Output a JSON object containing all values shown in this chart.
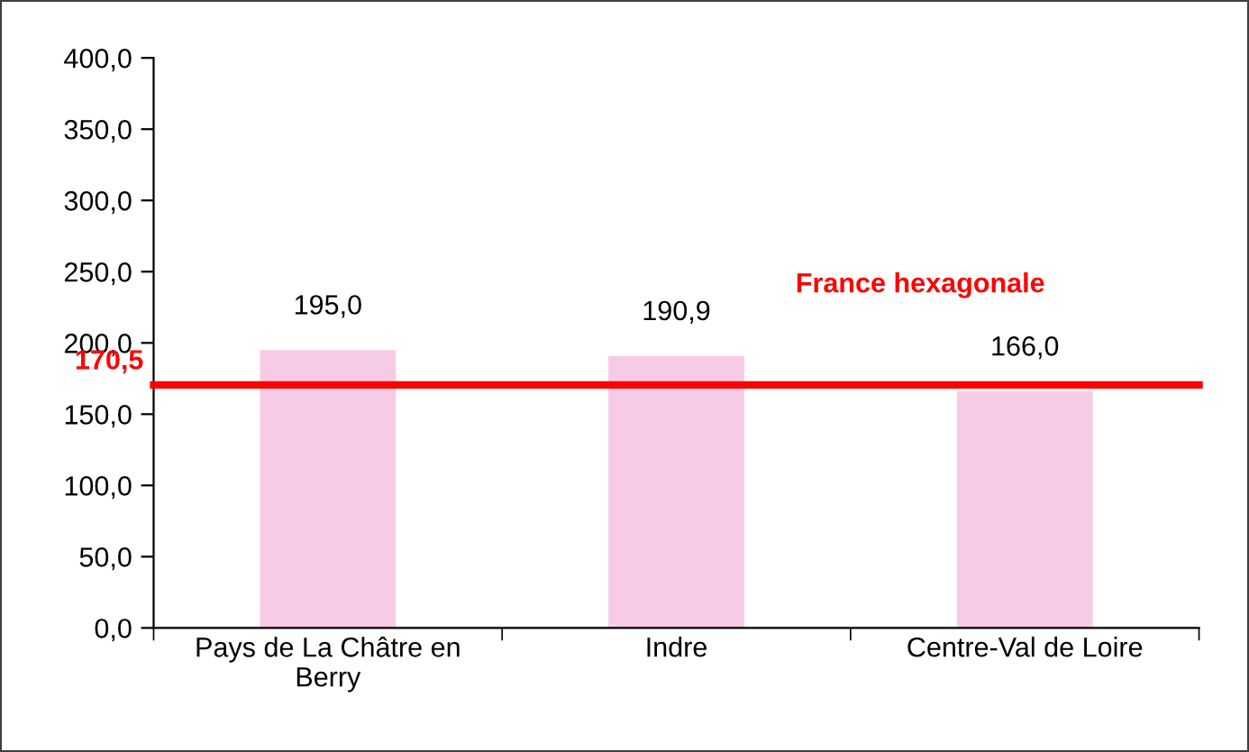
{
  "chart_data": {
    "type": "bar",
    "categories": [
      "Pays de La Châtre en\nBerry",
      "Indre",
      "Centre-Val de Loire"
    ],
    "values": [
      195.0,
      190.9,
      166.0
    ],
    "value_labels": [
      "195,0",
      "190,9",
      "166,0"
    ],
    "color": "#f7cbe6",
    "ylim": [
      0,
      400
    ],
    "yticks": [
      {
        "value": 0,
        "label": "0,0"
      },
      {
        "value": 50,
        "label": "50,0"
      },
      {
        "value": 100,
        "label": "100,0"
      },
      {
        "value": 150,
        "label": "150,0"
      },
      {
        "value": 200,
        "label": "200,0"
      },
      {
        "value": 250,
        "label": "250,0"
      },
      {
        "value": 300,
        "label": "300,0"
      },
      {
        "value": 350,
        "label": "350,0"
      },
      {
        "value": 400,
        "label": "400,0"
      }
    ],
    "ref_lines": [
      {
        "axis": "y",
        "value": 170.5,
        "label": "France hexagonale",
        "color": "#ff0000",
        "line_style": "solid"
      }
    ],
    "annotations": [
      "170,5"
    ],
    "grid": false,
    "legend": false
  }
}
